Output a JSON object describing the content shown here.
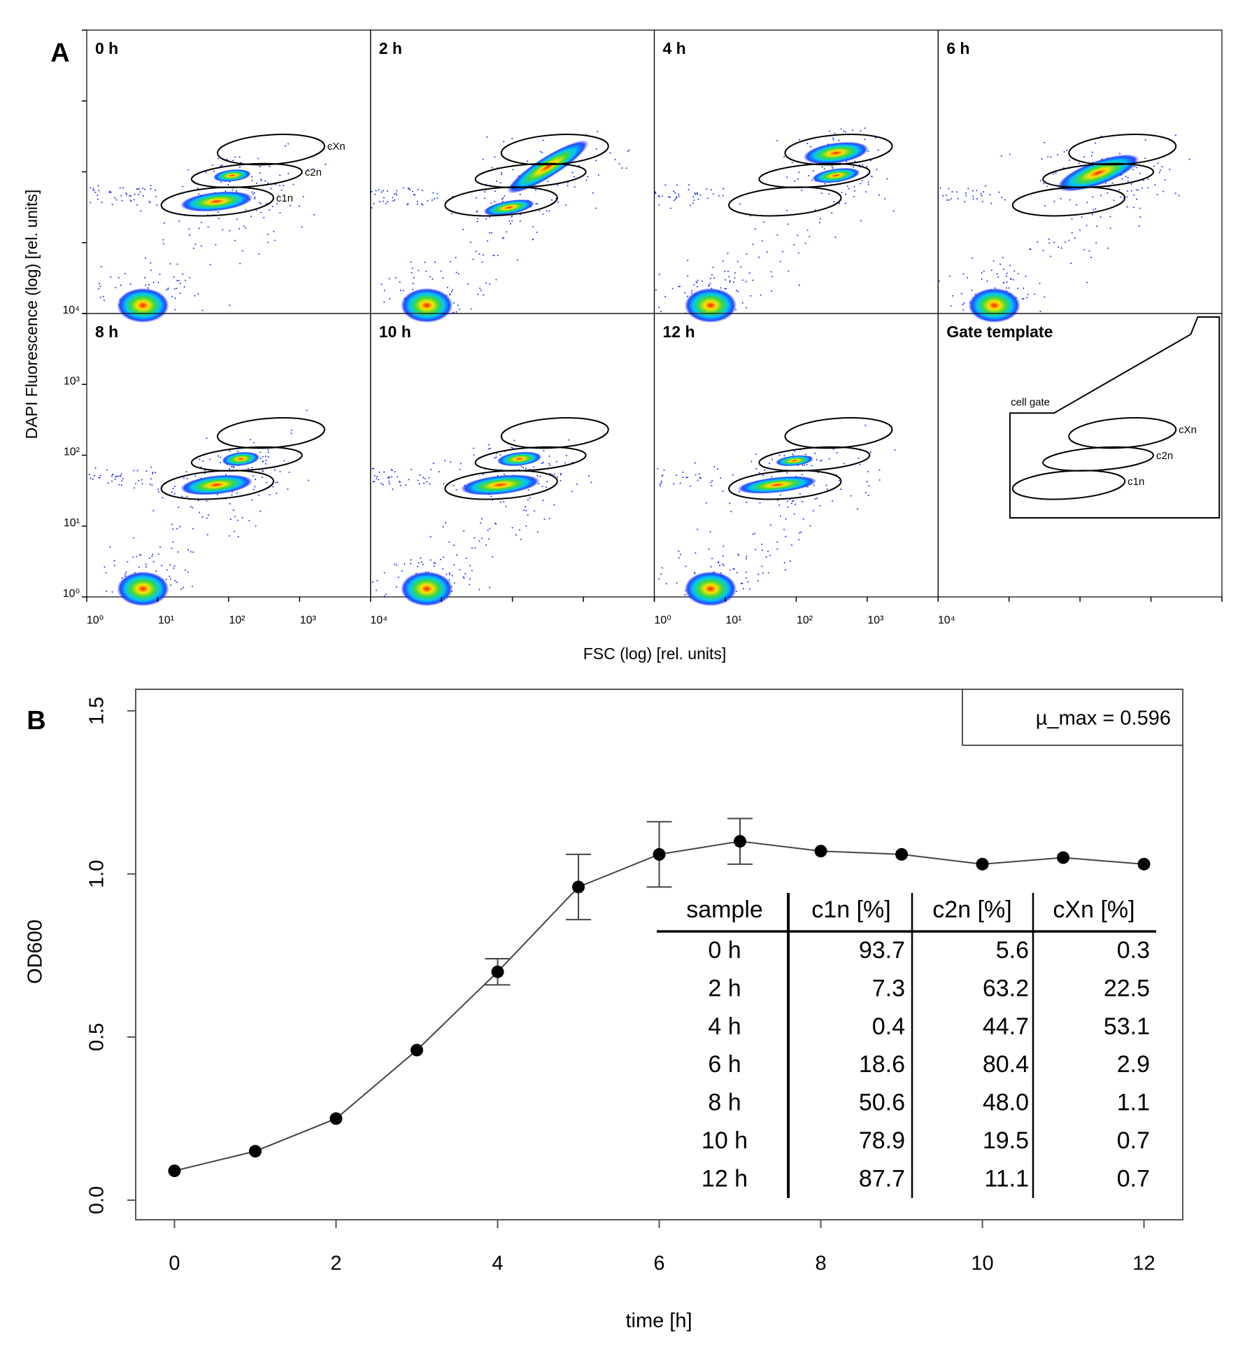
{
  "chart_data": [
    {
      "type": "density-grid",
      "panel_label": "A",
      "x_label": "FSC (log) [rel. units]",
      "y_label": "DAPI Fluorescence (log) [rel. units]",
      "log_x": true,
      "log_y": true,
      "xlim": [
        1,
        10000
      ],
      "ylim": [
        1,
        10000
      ],
      "xticks": [
        {
          "value": 1,
          "label": "10⁰"
        },
        {
          "value": 10,
          "label": "10¹"
        },
        {
          "value": 100,
          "label": "10²"
        },
        {
          "value": 1000,
          "label": "10³"
        },
        {
          "value": 10000,
          "label": "10⁴"
        }
      ],
      "yticks": [
        {
          "value": 1,
          "label": "10⁰"
        },
        {
          "value": 10,
          "label": "10¹"
        },
        {
          "value": 100,
          "label": "10²"
        },
        {
          "value": 1000,
          "label": "10³"
        },
        {
          "value": 10000,
          "label": "10⁴"
        }
      ],
      "panels": [
        "0 h",
        "2 h",
        "4 h",
        "6 h",
        "8 h",
        "10 h",
        "12 h",
        "Gate template"
      ],
      "gates": [
        "cXn",
        "c2n",
        "c1n"
      ],
      "cell_gate": "cell gate"
    },
    {
      "type": "line",
      "panel_label": "B",
      "x_label": "time [h]",
      "y_label": "OD600",
      "x": [
        0,
        1,
        2,
        3,
        4,
        5,
        6,
        7,
        8,
        9,
        10,
        11,
        12
      ],
      "xlim": [
        -0.48,
        12.48
      ],
      "ylim": [
        -0.06,
        1.566
      ],
      "xticks": [
        0,
        2,
        4,
        6,
        8,
        10,
        12
      ],
      "yticks": [
        {
          "value": 0,
          "label": "0.0"
        },
        0.5,
        {
          "value": 1,
          "label": "1.0"
        },
        1.5
      ],
      "series": [
        {
          "color": "#000000",
          "values": [
            0.09,
            0.15,
            0.25,
            0.46,
            0.7,
            0.96,
            1.06,
            1.1,
            1.07,
            1.06,
            1.03,
            1.05,
            1.03
          ],
          "errors": [
            null,
            null,
            null,
            null,
            0.04,
            0.1,
            0.1,
            0.07,
            null,
            null,
            null,
            null,
            null
          ]
        }
      ],
      "legend_text": "µ_max = 0.596",
      "legend_position": "upper right",
      "table": {
        "header": [
          "sample",
          "c1n [%]",
          "c2n [%]",
          "cXn [%]"
        ],
        "rows": [
          [
            "0 h",
            "93.7",
            "5.6",
            "0.3"
          ],
          [
            "2 h",
            "7.3",
            "63.2",
            "22.5"
          ],
          [
            "4 h",
            "0.4",
            "44.7",
            "53.1"
          ],
          [
            "6 h",
            "18.6",
            "80.4",
            "2.9"
          ],
          [
            "8 h",
            "50.6",
            "48.0",
            "1.1"
          ],
          [
            "10 h",
            "78.9",
            "19.5",
            "0.7"
          ],
          [
            "12 h",
            "87.7",
            "11.1",
            "0.7"
          ]
        ]
      }
    }
  ]
}
